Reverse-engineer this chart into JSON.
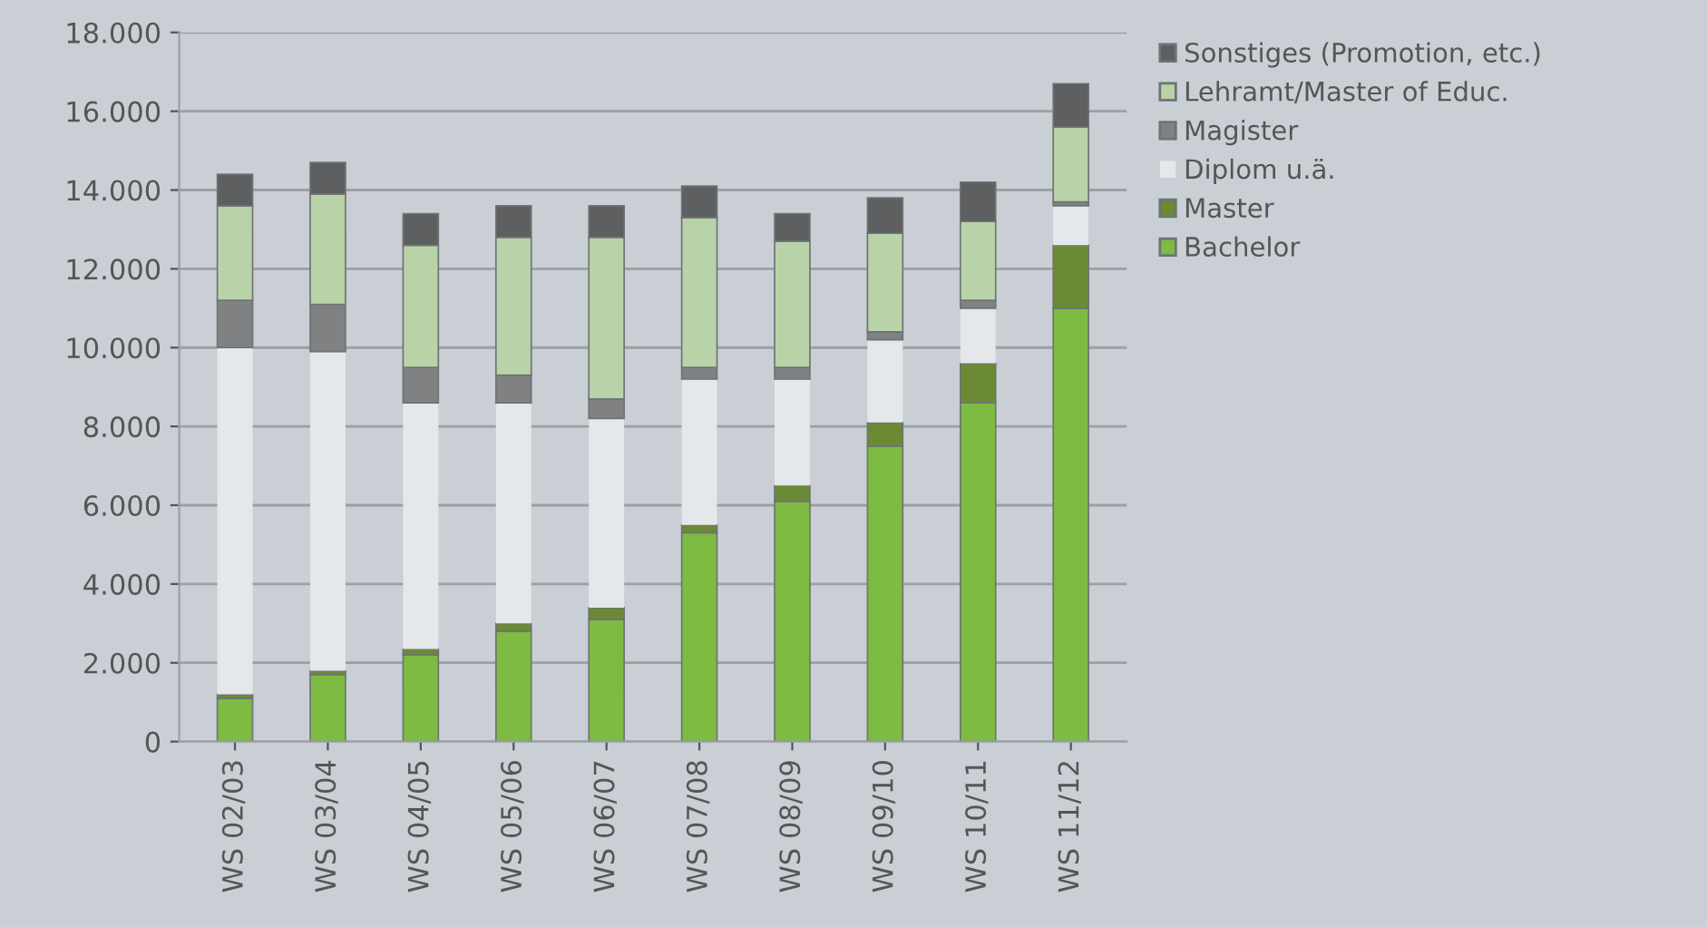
{
  "chart_data": {
    "type": "bar",
    "stacked": true,
    "categories": [
      "WS 02/03",
      "WS 03/04",
      "WS 04/05",
      "WS 05/06",
      "WS 06/07",
      "WS 07/08",
      "WS 08/09",
      "WS 09/10",
      "WS 10/11",
      "WS 11/12"
    ],
    "series": [
      {
        "name": "Bachelor",
        "color": "#7dbb42",
        "values": [
          1100,
          1700,
          2200,
          2800,
          3100,
          5300,
          6100,
          7500,
          8600,
          11000
        ]
      },
      {
        "name": "Master",
        "color": "#6b8a34",
        "values": [
          100,
          100,
          150,
          200,
          300,
          200,
          400,
          600,
          1000,
          1600
        ]
      },
      {
        "name": "Diplom u.ä.",
        "color": "#e4e8ea",
        "values": [
          8800,
          8100,
          6250,
          5600,
          4800,
          3700,
          2700,
          2100,
          1400,
          1000
        ]
      },
      {
        "name": "Magister",
        "color": "#7f8183",
        "values": [
          1200,
          1200,
          900,
          700,
          500,
          300,
          300,
          200,
          200,
          100
        ]
      },
      {
        "name": "Lehramt/Master of Educ.",
        "color": "#b9d3a8",
        "values": [
          2400,
          2800,
          3100,
          3500,
          4100,
          3800,
          3200,
          2500,
          2000,
          1900
        ]
      },
      {
        "name": "Sonstiges (Promotion, etc.)",
        "color": "#5d5f61",
        "values": [
          800,
          800,
          800,
          800,
          800,
          800,
          700,
          900,
          1000,
          1100
        ]
      }
    ],
    "ylim": [
      0,
      18000
    ],
    "yticks": [
      {
        "value": 0,
        "label": "0"
      },
      {
        "value": 2000,
        "label": "2.000"
      },
      {
        "value": 4000,
        "label": "4.000"
      },
      {
        "value": 6000,
        "label": "6.000"
      },
      {
        "value": 8000,
        "label": "8.000"
      },
      {
        "value": 10000,
        "label": "10.000"
      },
      {
        "value": 12000,
        "label": "12.000"
      },
      {
        "value": 14000,
        "label": "14.000"
      },
      {
        "value": 16000,
        "label": "16.000"
      },
      {
        "value": 18000,
        "label": "18.000"
      }
    ],
    "grid": "y",
    "legend": "right"
  }
}
